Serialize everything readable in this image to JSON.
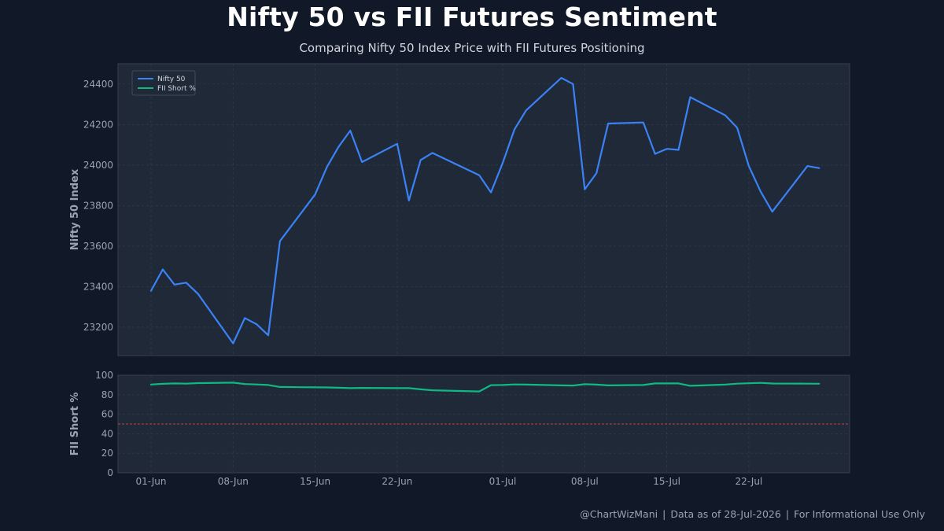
{
  "title": "Nifty 50 vs FII Futures Sentiment",
  "subtitle": "Comparing Nifty 50 Index Price with FII Futures Positioning",
  "footer": {
    "handle": "@ChartWizMani",
    "as_of": "Data as of 28-Jul-2026",
    "note": "For Informational Use Only"
  },
  "colors": {
    "background": "#111827",
    "panel": "#1f2937",
    "nifty": "#3b82f6",
    "fii": "#10b981",
    "reference": "#ef4444",
    "grid": "#374151"
  },
  "chart_data": [
    {
      "type": "line",
      "panel": "top",
      "ylabel": "Nifty 50 Index",
      "ylim": [
        23060,
        24500
      ],
      "yticks": [
        23200,
        23400,
        23600,
        23800,
        24000,
        24200,
        24400
      ],
      "grid": true,
      "legend_position": "top-left",
      "x_start": "2026-06-01",
      "x_end": "2026-07-28",
      "xticks": [
        {
          "date": "2026-06-01",
          "label": "01-Jun"
        },
        {
          "date": "2026-06-08",
          "label": "08-Jun"
        },
        {
          "date": "2026-06-15",
          "label": "15-Jun"
        },
        {
          "date": "2026-06-22",
          "label": "22-Jun"
        },
        {
          "date": "2026-07-01",
          "label": "01-Jul"
        },
        {
          "date": "2026-07-08",
          "label": "08-Jul"
        },
        {
          "date": "2026-07-15",
          "label": "15-Jul"
        },
        {
          "date": "2026-07-22",
          "label": "22-Jul"
        }
      ],
      "series": [
        {
          "name": "Nifty 50",
          "points": [
            [
              "2026-06-01",
              23380
            ],
            [
              "2026-06-02",
              23485
            ],
            [
              "2026-06-03",
              23410
            ],
            [
              "2026-06-04",
              23420
            ],
            [
              "2026-06-05",
              23365
            ],
            [
              "2026-06-08",
              23120
            ],
            [
              "2026-06-09",
              23245
            ],
            [
              "2026-06-10",
              23215
            ],
            [
              "2026-06-11",
              23160
            ],
            [
              "2026-06-12",
              23625
            ],
            [
              "2026-06-15",
              23855
            ],
            [
              "2026-06-16",
              23990
            ],
            [
              "2026-06-17",
              24090
            ],
            [
              "2026-06-18",
              24170
            ],
            [
              "2026-06-19",
              24015
            ],
            [
              "2026-06-22",
              24105
            ],
            [
              "2026-06-23",
              23825
            ],
            [
              "2026-06-24",
              24025
            ],
            [
              "2026-06-25",
              24060
            ],
            [
              "2026-06-29",
              23950
            ],
            [
              "2026-06-30",
              23865
            ],
            [
              "2026-07-01",
              24010
            ],
            [
              "2026-07-02",
              24175
            ],
            [
              "2026-07-03",
              24270
            ],
            [
              "2026-07-06",
              24430
            ],
            [
              "2026-07-07",
              24400
            ],
            [
              "2026-07-08",
              23880
            ],
            [
              "2026-07-09",
              23960
            ],
            [
              "2026-07-10",
              24205
            ],
            [
              "2026-07-13",
              24210
            ],
            [
              "2026-07-14",
              24055
            ],
            [
              "2026-07-15",
              24080
            ],
            [
              "2026-07-16",
              24075
            ],
            [
              "2026-07-17",
              24335
            ],
            [
              "2026-07-20",
              24245
            ],
            [
              "2026-07-21",
              24185
            ],
            [
              "2026-07-22",
              23995
            ],
            [
              "2026-07-23",
              23870
            ],
            [
              "2026-07-24",
              23770
            ],
            [
              "2026-07-27",
              23995
            ],
            [
              "2026-07-28",
              23985
            ]
          ]
        },
        {
          "name": "FII Short %",
          "legend_only": true
        }
      ]
    },
    {
      "type": "line",
      "panel": "bottom",
      "ylabel": "FII Short %",
      "ylim": [
        0,
        100
      ],
      "yticks": [
        0,
        20,
        40,
        60,
        80,
        100
      ],
      "grid": true,
      "reference_line": 50,
      "series": [
        {
          "name": "FII Short %",
          "points": [
            [
              "2026-06-01",
              90.5
            ],
            [
              "2026-06-02",
              91.2
            ],
            [
              "2026-06-03",
              91.6
            ],
            [
              "2026-06-04",
              91.4
            ],
            [
              "2026-06-05",
              91.9
            ],
            [
              "2026-06-08",
              92.4
            ],
            [
              "2026-06-09",
              91.0
            ],
            [
              "2026-06-10",
              90.6
            ],
            [
              "2026-06-11",
              90.0
            ],
            [
              "2026-06-12",
              88.0
            ],
            [
              "2026-06-15",
              87.6
            ],
            [
              "2026-06-16",
              87.5
            ],
            [
              "2026-06-17",
              87.2
            ],
            [
              "2026-06-18",
              86.8
            ],
            [
              "2026-06-19",
              87.0
            ],
            [
              "2026-06-22",
              86.8
            ],
            [
              "2026-06-23",
              86.8
            ],
            [
              "2026-06-24",
              85.6
            ],
            [
              "2026-06-25",
              84.6
            ],
            [
              "2026-06-29",
              83.4
            ],
            [
              "2026-06-30",
              89.8
            ],
            [
              "2026-07-01",
              90.0
            ],
            [
              "2026-07-02",
              90.6
            ],
            [
              "2026-07-03",
              90.4
            ],
            [
              "2026-07-06",
              89.6
            ],
            [
              "2026-07-07",
              89.4
            ],
            [
              "2026-07-08",
              90.8
            ],
            [
              "2026-07-09",
              90.4
            ],
            [
              "2026-07-10",
              89.6
            ],
            [
              "2026-07-13",
              90.0
            ],
            [
              "2026-07-14",
              91.6
            ],
            [
              "2026-07-15",
              91.6
            ],
            [
              "2026-07-16",
              91.6
            ],
            [
              "2026-07-17",
              89.2
            ],
            [
              "2026-07-20",
              90.4
            ],
            [
              "2026-07-21",
              91.4
            ],
            [
              "2026-07-22",
              91.8
            ],
            [
              "2026-07-23",
              92.2
            ],
            [
              "2026-07-24",
              91.5
            ],
            [
              "2026-07-27",
              91.4
            ],
            [
              "2026-07-28",
              91.3
            ]
          ]
        }
      ]
    }
  ]
}
